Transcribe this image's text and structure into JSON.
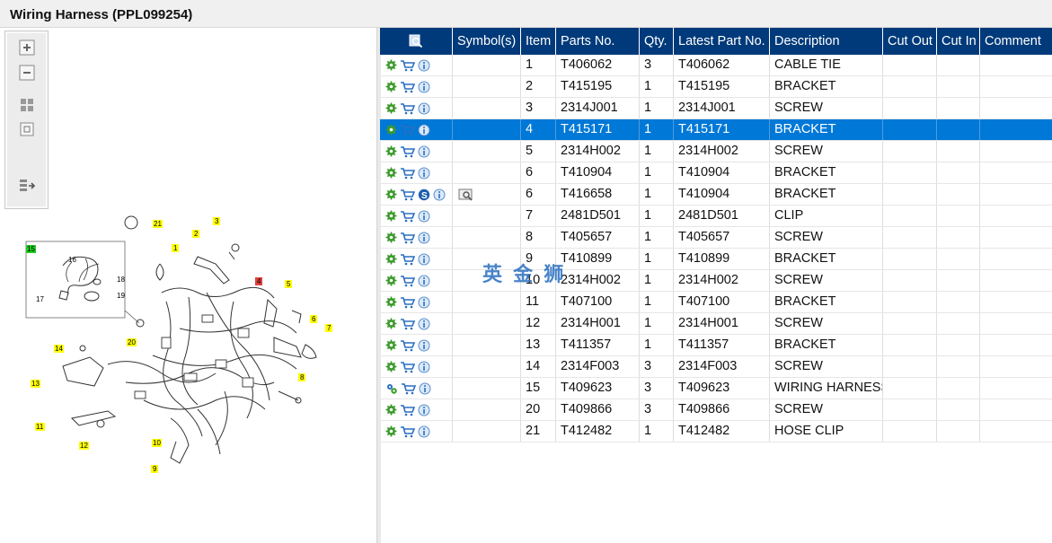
{
  "window": {
    "title": "Wiring Harness (PPL099254)"
  },
  "toolbar": {
    "buttons": [
      "zoom-in-icon",
      "zoom-out-icon",
      "fit-all-icon",
      "fit-window-icon",
      "export-icon"
    ]
  },
  "diagram": {
    "callouts": [
      "1",
      "2",
      "3",
      "4",
      "5",
      "6",
      "7",
      "8",
      "9",
      "10",
      "11",
      "12",
      "13",
      "14",
      "15",
      "16",
      "17",
      "18",
      "19",
      "20",
      "21"
    ],
    "highlight_colors": {
      "callout": "#ffff00",
      "selected": "#e04040",
      "assembly": "#22cc22"
    }
  },
  "grid": {
    "headers": [
      "",
      "Symbol(s)",
      "Item",
      "Parts No.",
      "Qty.",
      "Latest Part No.",
      "Description",
      "Cut Out",
      "Cut In",
      "Comment"
    ],
    "rows": [
      {
        "item": "1",
        "part": "T406062",
        "qty": "3",
        "latest": "T406062",
        "desc": "CABLE TIE"
      },
      {
        "item": "2",
        "part": "T415195",
        "qty": "1",
        "latest": "T415195",
        "desc": "BRACKET"
      },
      {
        "item": "3",
        "part": "2314J001",
        "qty": "1",
        "latest": "2314J001",
        "desc": "SCREW"
      },
      {
        "item": "4",
        "part": "T415171",
        "qty": "1",
        "latest": "T415171",
        "desc": "BRACKET"
      },
      {
        "item": "5",
        "part": "2314H002",
        "qty": "1",
        "latest": "2314H002",
        "desc": "SCREW"
      },
      {
        "item": "6",
        "part": "T410904",
        "qty": "1",
        "latest": "T410904",
        "desc": "BRACKET"
      },
      {
        "item": "6",
        "part": "T416658",
        "qty": "1",
        "latest": "T410904",
        "desc": "BRACKET"
      },
      {
        "item": "7",
        "part": "2481D501",
        "qty": "1",
        "latest": "2481D501",
        "desc": "CLIP"
      },
      {
        "item": "8",
        "part": "T405657",
        "qty": "1",
        "latest": "T405657",
        "desc": "SCREW"
      },
      {
        "item": "9",
        "part": "T410899",
        "qty": "1",
        "latest": "T410899",
        "desc": "BRACKET"
      },
      {
        "item": "10",
        "part": "2314H002",
        "qty": "1",
        "latest": "2314H002",
        "desc": "SCREW"
      },
      {
        "item": "11",
        "part": "T407100",
        "qty": "1",
        "latest": "T407100",
        "desc": "BRACKET"
      },
      {
        "item": "12",
        "part": "2314H001",
        "qty": "1",
        "latest": "2314H001",
        "desc": "SCREW"
      },
      {
        "item": "13",
        "part": "T411357",
        "qty": "1",
        "latest": "T411357",
        "desc": "BRACKET"
      },
      {
        "item": "14",
        "part": "2314F003",
        "qty": "3",
        "latest": "2314F003",
        "desc": "SCREW"
      },
      {
        "item": "15",
        "part": "T409623",
        "qty": "3",
        "latest": "T409623",
        "desc": "WIRING HARNESS"
      },
      {
        "item": "20",
        "part": "T409866",
        "qty": "3",
        "latest": "T409866",
        "desc": "SCREW"
      },
      {
        "item": "21",
        "part": "T412482",
        "qty": "1",
        "latest": "T412482",
        "desc": "HOSE CLIP"
      }
    ]
  },
  "watermark": "英 金 狮",
  "colors": {
    "header_bg": "#003a7a",
    "selected_row": "#0078d7",
    "icon_green": "#3a9a2a",
    "icon_blue": "#2a6fc0"
  }
}
